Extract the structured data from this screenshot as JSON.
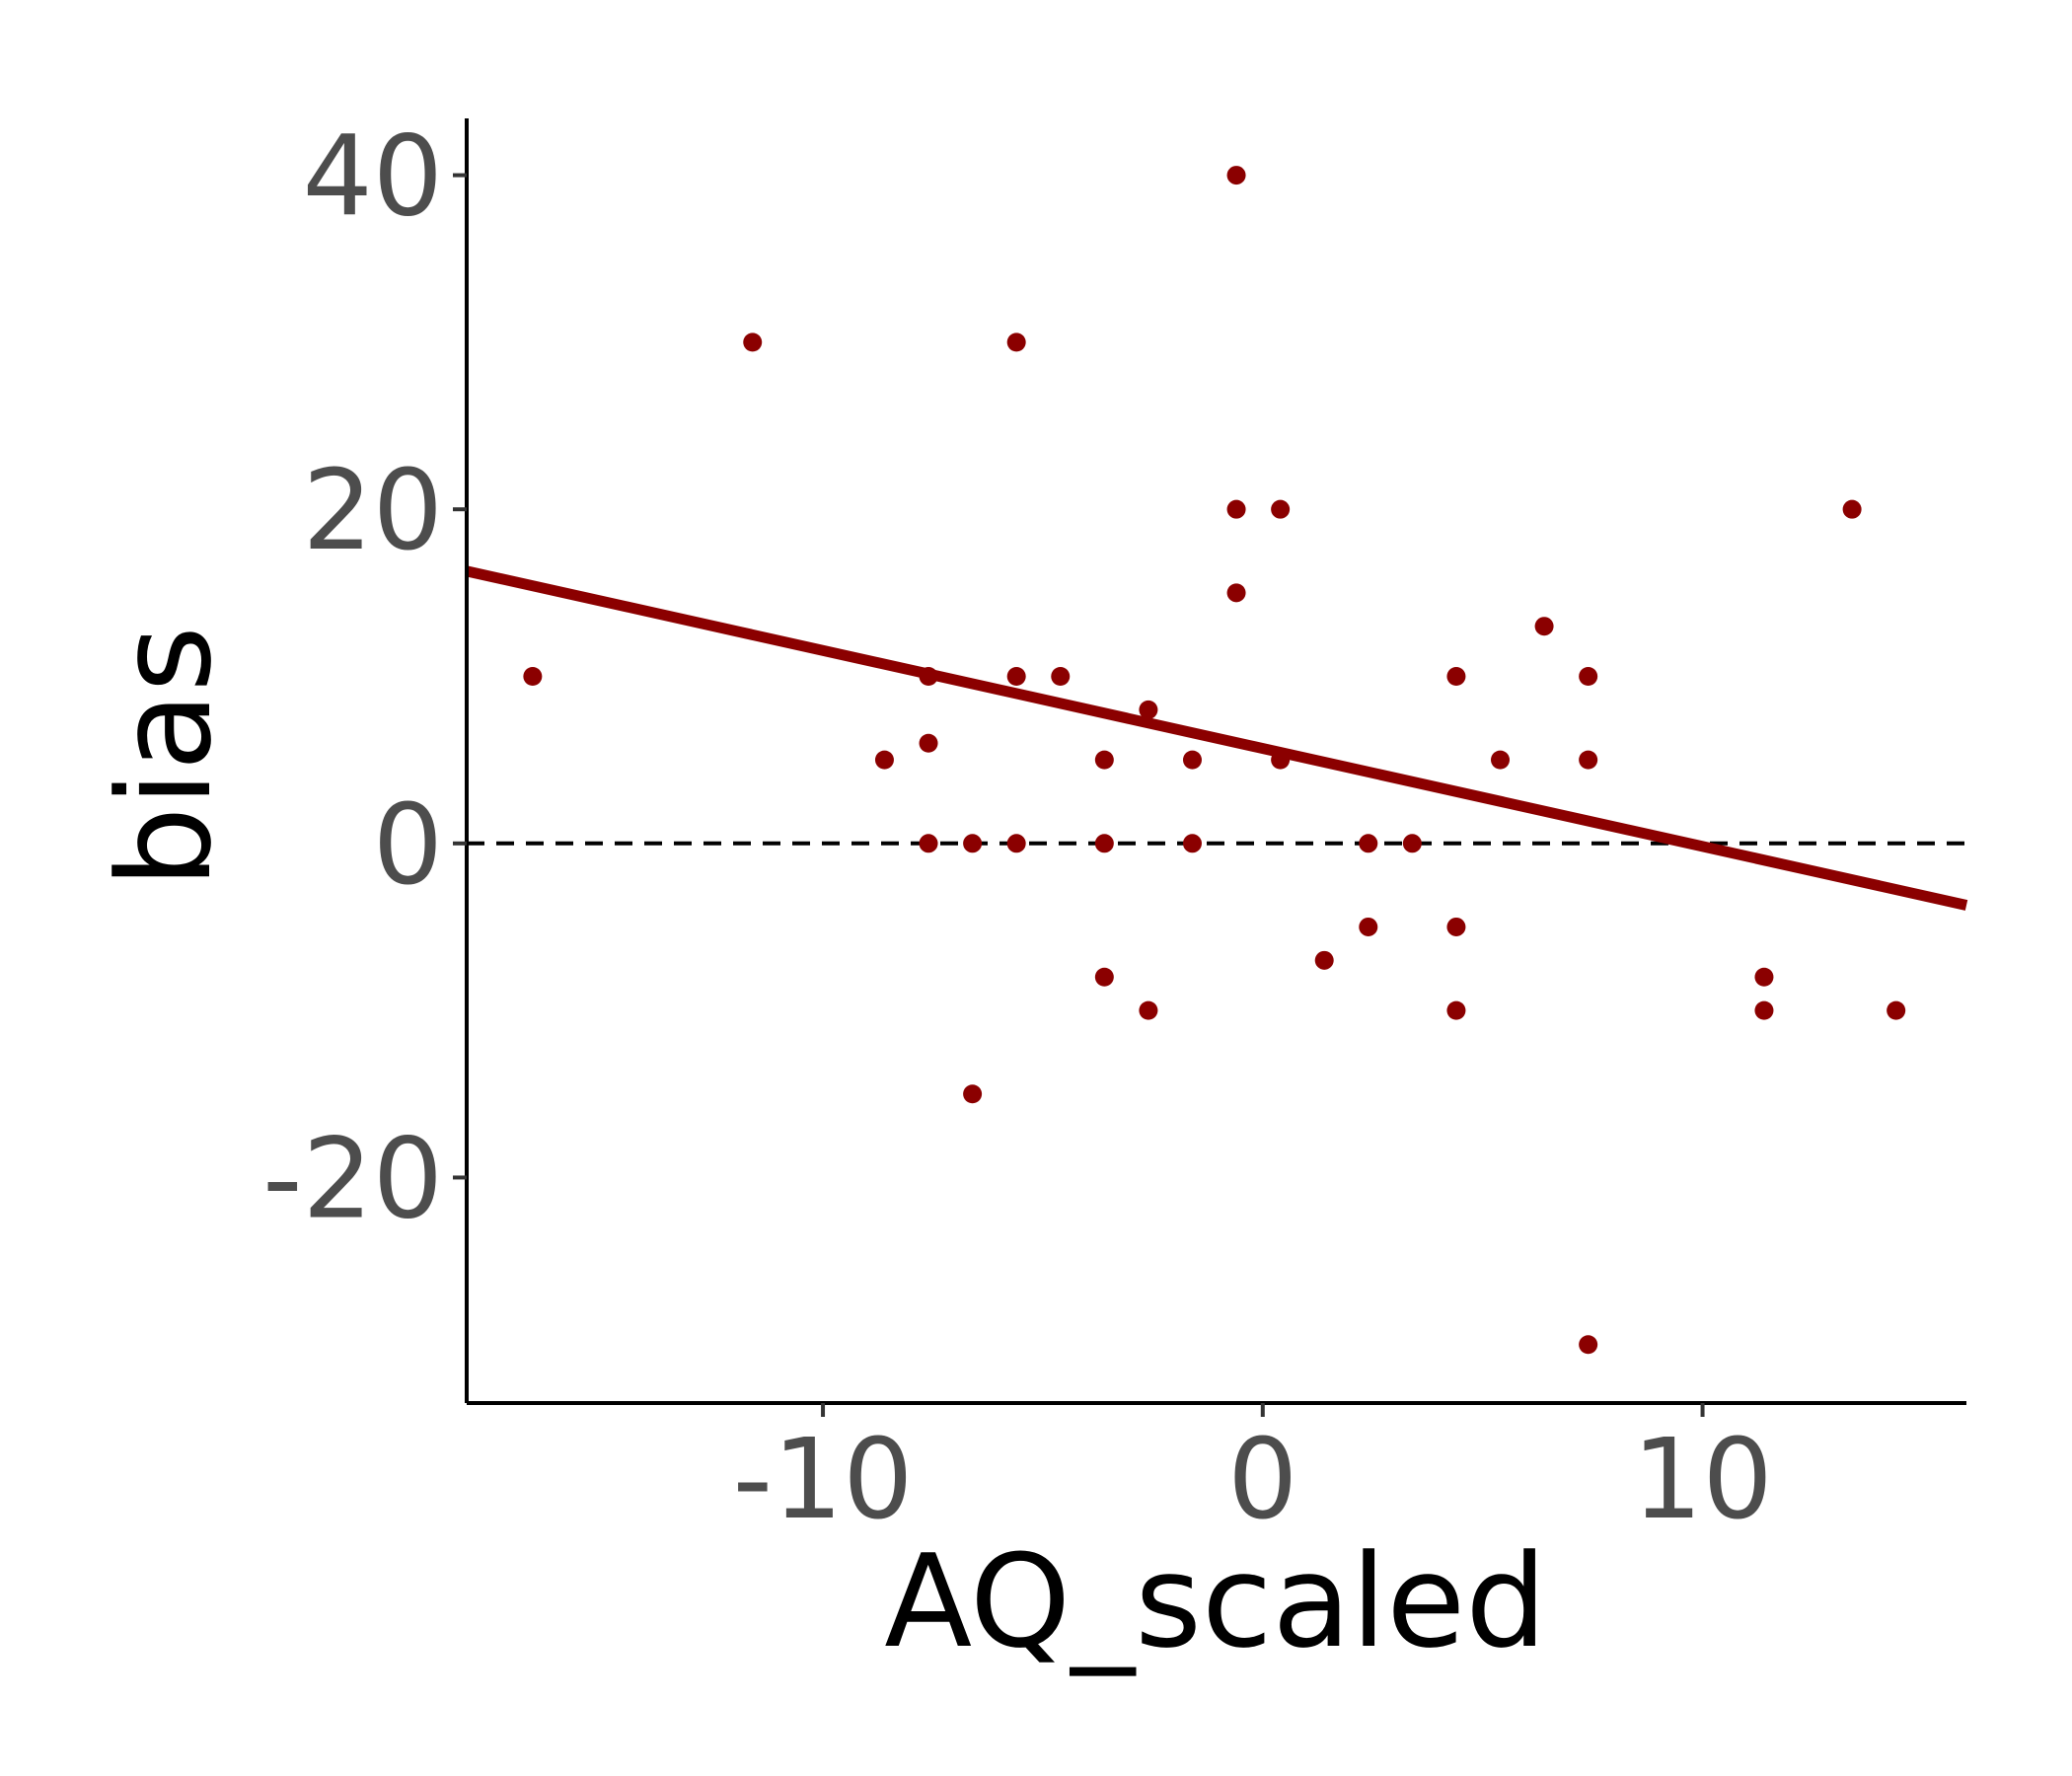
{
  "chart_data": {
    "type": "scatter",
    "xlabel": "AQ_scaled",
    "ylabel": "bias",
    "xlim": [
      -18.1,
      16.0
    ],
    "ylim": [
      -33.5,
      43.4
    ],
    "x_ticks": [
      -10,
      0,
      10
    ],
    "y_ticks": [
      -20,
      0,
      20,
      40
    ],
    "x_tick_labels": [
      "-10",
      "0",
      "10"
    ],
    "y_tick_labels": [
      "-20",
      "0",
      "20",
      "40"
    ],
    "grid": false,
    "legend": "none",
    "point_color": "#8b0000",
    "line_color": "#8b0000",
    "reference_line": {
      "y": 0,
      "style": "dashed",
      "color": "#000000"
    },
    "fit_line": {
      "x": [
        -18.1,
        16.0
      ],
      "y": [
        16.3,
        -3.7
      ]
    },
    "points": [
      {
        "x": -16.6,
        "y": 10
      },
      {
        "x": -11.6,
        "y": 30
      },
      {
        "x": -8.6,
        "y": 5
      },
      {
        "x": -7.6,
        "y": 10
      },
      {
        "x": -7.6,
        "y": 6
      },
      {
        "x": -7.6,
        "y": 0
      },
      {
        "x": -6.6,
        "y": 0
      },
      {
        "x": -6.6,
        "y": -15
      },
      {
        "x": -5.6,
        "y": 30
      },
      {
        "x": -5.6,
        "y": 10
      },
      {
        "x": -5.6,
        "y": 0
      },
      {
        "x": -4.6,
        "y": 10
      },
      {
        "x": -3.6,
        "y": 5
      },
      {
        "x": -3.6,
        "y": 0
      },
      {
        "x": -3.6,
        "y": -8
      },
      {
        "x": -2.6,
        "y": 8
      },
      {
        "x": -2.6,
        "y": -10
      },
      {
        "x": -1.6,
        "y": 5
      },
      {
        "x": -1.6,
        "y": 0
      },
      {
        "x": -0.6,
        "y": 40
      },
      {
        "x": -0.6,
        "y": 20
      },
      {
        "x": -0.6,
        "y": 15
      },
      {
        "x": 0.4,
        "y": 20
      },
      {
        "x": 0.4,
        "y": 5
      },
      {
        "x": 1.4,
        "y": -7
      },
      {
        "x": 2.4,
        "y": 0
      },
      {
        "x": 2.4,
        "y": -5
      },
      {
        "x": 3.4,
        "y": 0
      },
      {
        "x": 4.4,
        "y": 10
      },
      {
        "x": 4.4,
        "y": -5
      },
      {
        "x": 4.4,
        "y": -10
      },
      {
        "x": 5.4,
        "y": 5
      },
      {
        "x": 6.4,
        "y": 13
      },
      {
        "x": 7.4,
        "y": 10
      },
      {
        "x": 7.4,
        "y": 5
      },
      {
        "x": 7.4,
        "y": -30
      },
      {
        "x": 11.4,
        "y": -8
      },
      {
        "x": 11.4,
        "y": -10
      },
      {
        "x": 13.4,
        "y": 20
      },
      {
        "x": 14.4,
        "y": -10
      }
    ]
  }
}
